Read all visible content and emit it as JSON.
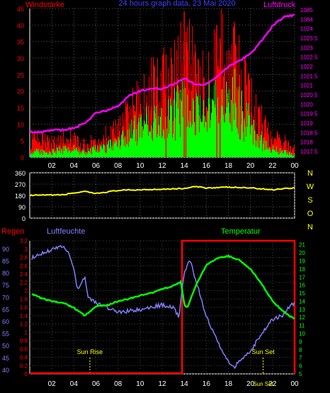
{
  "chart_data": [
    {
      "type": "bar",
      "title": "24 hours graph data, 23 Mai 2020",
      "ylabel_left": "Windstärke",
      "ylabel_right": "Luftdruck",
      "x_ticks": [
        "02",
        "04",
        "06",
        "08",
        "10",
        "12",
        "14",
        "16",
        "18",
        "20",
        "22",
        "00"
      ],
      "ylim_left": [
        0,
        45
      ],
      "y_ticks_left": [
        0,
        5,
        10,
        15,
        20,
        25,
        30,
        35,
        40,
        45
      ],
      "ylim_right": [
        1017.25,
        1085
      ],
      "y_ticks_right": [
        "1017.5",
        "1018",
        "1018.5",
        "1019",
        "1019.5",
        "1020",
        "1020.5",
        "1021",
        "1021.5",
        "1022",
        "1022.5",
        "1023",
        "1023.5",
        "1024",
        "1084",
        "1085"
      ],
      "gust_profile": [
        [
          0,
          6
        ],
        [
          2,
          5
        ],
        [
          3,
          7
        ],
        [
          4,
          6
        ],
        [
          5,
          4
        ],
        [
          6,
          6
        ],
        [
          8,
          9
        ],
        [
          9,
          14
        ],
        [
          10,
          18
        ],
        [
          11,
          22
        ],
        [
          12,
          24
        ],
        [
          13,
          25
        ],
        [
          14,
          34
        ],
        [
          15,
          26
        ],
        [
          16,
          30
        ],
        [
          17,
          32
        ],
        [
          18,
          35
        ],
        [
          19,
          26
        ],
        [
          20,
          18
        ],
        [
          21,
          12
        ],
        [
          22,
          8
        ],
        [
          23,
          5
        ],
        [
          24,
          3
        ]
      ],
      "speed_profile": [
        [
          0,
          2
        ],
        [
          2,
          2
        ],
        [
          3,
          3
        ],
        [
          4,
          3
        ],
        [
          5,
          2
        ],
        [
          6,
          3
        ],
        [
          8,
          5
        ],
        [
          9,
          9
        ],
        [
          10,
          11
        ],
        [
          11,
          13
        ],
        [
          12,
          14
        ],
        [
          13,
          16
        ],
        [
          14,
          20
        ],
        [
          15,
          17
        ],
        [
          16,
          20
        ],
        [
          17,
          22
        ],
        [
          18,
          24
        ],
        [
          19,
          18
        ],
        [
          20,
          11
        ],
        [
          21,
          6
        ],
        [
          22,
          3
        ],
        [
          23,
          2
        ],
        [
          24,
          1
        ]
      ],
      "pressure_profile": [
        [
          0,
          1018.4
        ],
        [
          1,
          1018.4
        ],
        [
          2,
          1018.5
        ],
        [
          3,
          1018.5
        ],
        [
          4,
          1018.6
        ],
        [
          5,
          1018.8
        ],
        [
          6,
          1019.3
        ],
        [
          7,
          1019.4
        ],
        [
          8,
          1019.6
        ],
        [
          9,
          1020.1
        ],
        [
          10,
          1020.3
        ],
        [
          11,
          1020.4
        ],
        [
          12,
          1020.4
        ],
        [
          13,
          1020.6
        ],
        [
          14,
          1020.9
        ],
        [
          15,
          1020.6
        ],
        [
          16,
          1020.6
        ],
        [
          17,
          1021.0
        ],
        [
          18,
          1021.4
        ],
        [
          19,
          1021.7
        ],
        [
          20,
          1022.0
        ],
        [
          21,
          1022.6
        ],
        [
          22,
          1023.3
        ],
        [
          23,
          1023.7
        ],
        [
          24,
          1023.8
        ]
      ],
      "colors": {
        "gust": "#ff0000",
        "speed": "#00ff00",
        "pressure": "#ff00ff"
      },
      "grid": true
    },
    {
      "type": "line",
      "ylabel_right": [
        "N",
        "W",
        "S",
        "O",
        "N"
      ],
      "y_ticks_left": [
        0,
        90,
        180,
        270,
        360
      ],
      "ylim": [
        0,
        360
      ],
      "direction_profile": [
        [
          0,
          180
        ],
        [
          3,
          185
        ],
        [
          4,
          200
        ],
        [
          5,
          210
        ],
        [
          6,
          195
        ],
        [
          8,
          220
        ],
        [
          10,
          225
        ],
        [
          12,
          230
        ],
        [
          14,
          235
        ],
        [
          15,
          250
        ],
        [
          16,
          240
        ],
        [
          18,
          245
        ],
        [
          20,
          240
        ],
        [
          22,
          225
        ],
        [
          23,
          235
        ],
        [
          24,
          240
        ]
      ],
      "colors": {
        "direction": "#ffff00"
      },
      "grid": true
    },
    {
      "type": "line",
      "labels": {
        "rain": "Regen",
        "humidity": "Luftfeuchte",
        "temperature": "Temperatur",
        "sunrise": "Sun Rise",
        "sunset": "Sun Set"
      },
      "x_ticks": [
        "02",
        "04",
        "06",
        "08",
        "10",
        "12",
        "14",
        "16",
        "18",
        "20",
        "22",
        "00"
      ],
      "rain_ticks": [
        "0",
        "0.2",
        "0.4",
        "0.6",
        "0.8",
        "1",
        "1.2",
        "1.4",
        "1.6",
        "1.8",
        "2",
        "2.2",
        "2.4",
        "2.6",
        "2.8",
        "3",
        "3.2"
      ],
      "rain_lim": [
        0,
        3.2
      ],
      "humidity_ticks": [
        40,
        45,
        50,
        55,
        60,
        65,
        70,
        75,
        80,
        85,
        90
      ],
      "humidity_lim": [
        38.5,
        93.5
      ],
      "temp_ticks": [
        5,
        6,
        7,
        8,
        9,
        10,
        11,
        12,
        13,
        14,
        15,
        16,
        17,
        18,
        19,
        20,
        21
      ],
      "temp_lim": [
        5,
        21.5
      ],
      "humidity_profile": [
        [
          0,
          86
        ],
        [
          1,
          88
        ],
        [
          2,
          90
        ],
        [
          3,
          91
        ],
        [
          3.5,
          89
        ],
        [
          4,
          82
        ],
        [
          4.3,
          73
        ],
        [
          5,
          79
        ],
        [
          5.3,
          70
        ],
        [
          6,
          68
        ],
        [
          8,
          64
        ],
        [
          10,
          65
        ],
        [
          12,
          67
        ],
        [
          13,
          66
        ],
        [
          13.5,
          62
        ],
        [
          14,
          80
        ],
        [
          14.5,
          86
        ],
        [
          15,
          78
        ],
        [
          16,
          62
        ],
        [
          17,
          52
        ],
        [
          18,
          44
        ],
        [
          18.5,
          41
        ],
        [
          19,
          44
        ],
        [
          20,
          48
        ],
        [
          21,
          55
        ],
        [
          22,
          61
        ],
        [
          23,
          63
        ],
        [
          23.5,
          66
        ],
        [
          24,
          68
        ]
      ],
      "temperature_profile": [
        [
          0,
          15.0
        ],
        [
          1,
          14.4
        ],
        [
          2,
          14.0
        ],
        [
          3,
          13.8
        ],
        [
          4,
          13.2
        ],
        [
          5,
          12.2
        ],
        [
          5.5,
          12.8
        ],
        [
          6,
          13.4
        ],
        [
          7,
          13.5
        ],
        [
          8,
          14.0
        ],
        [
          9,
          14.3
        ],
        [
          10,
          14.7
        ],
        [
          11,
          15.0
        ],
        [
          12,
          15.5
        ],
        [
          13,
          15.9
        ],
        [
          13.7,
          16.4
        ],
        [
          14,
          13.6
        ],
        [
          14.3,
          13.2
        ],
        [
          15,
          15.8
        ],
        [
          16,
          18.5
        ],
        [
          17,
          19.3
        ],
        [
          18,
          19.6
        ],
        [
          19,
          19.1
        ],
        [
          20,
          18.0
        ],
        [
          21,
          16.2
        ],
        [
          22,
          14.0
        ],
        [
          23,
          12.7
        ],
        [
          24,
          11.8
        ]
      ],
      "rain_total": 3.2,
      "rain_start_hour": 13.8,
      "sunrise_hour": 5.45,
      "sunset_hour": 21.15,
      "colors": {
        "humidity": "#8080ff",
        "temperature": "#00ff00",
        "rain": "#ff0000",
        "sun": "#ffff00"
      },
      "grid": true
    }
  ]
}
